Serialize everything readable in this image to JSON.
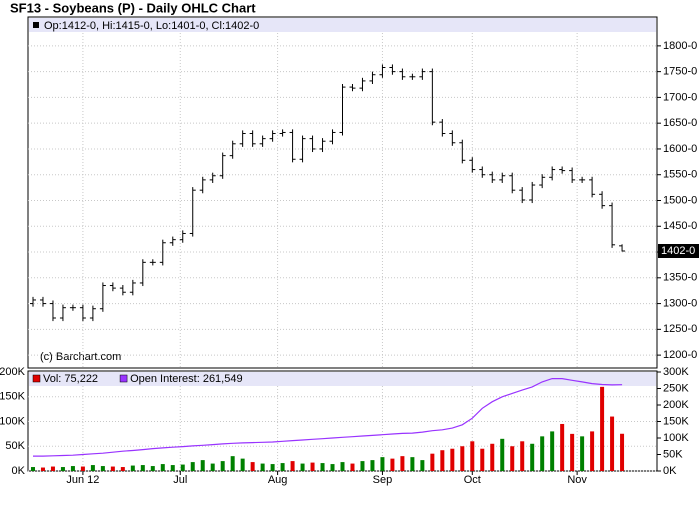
{
  "chart_data": [
    {
      "type": "ohlc",
      "title": "SF13 - Soybeans (P) - Daily OHLC Chart",
      "legend_text": "Op:1412-0, Hi:1415-0, Lo:1401-0, Cl:1402-0",
      "watermark": "(c) Barchart.com",
      "last_label": "1402-0",
      "last_value": 1402,
      "color": "#000000",
      "grid": true,
      "x": [
        0,
        2,
        4,
        6,
        8,
        10,
        12,
        14,
        16,
        18,
        20,
        22,
        24,
        26,
        28,
        30,
        32,
        34,
        36,
        38,
        40,
        42,
        44,
        46,
        48,
        50,
        52,
        54,
        56,
        58,
        60,
        62,
        64,
        66,
        68,
        70,
        72,
        74,
        76,
        78,
        80,
        82,
        84,
        86,
        88,
        90,
        92,
        94,
        96,
        98,
        100,
        102,
        104,
        106,
        108,
        110,
        112,
        114,
        116,
        118
      ],
      "open": [
        1300,
        1307,
        1300,
        1272,
        1292,
        1292,
        1272,
        1290,
        1335,
        1330,
        1322,
        1340,
        1380,
        1380,
        1418,
        1424,
        1436,
        1520,
        1540,
        1548,
        1587,
        1610,
        1630,
        1610,
        1620,
        1630,
        1632,
        1580,
        1620,
        1600,
        1615,
        1632,
        1720,
        1718,
        1732,
        1744,
        1758,
        1750,
        1740,
        1740,
        1750,
        1652,
        1630,
        1612,
        1578,
        1560,
        1550,
        1540,
        1548,
        1520,
        1501,
        1530,
        1545,
        1560,
        1558,
        1540,
        1540,
        1512,
        1490,
        1412
      ],
      "high": [
        1313,
        1313,
        1306,
        1298,
        1298,
        1298,
        1296,
        1341,
        1341,
        1336,
        1346,
        1386,
        1386,
        1424,
        1430,
        1442,
        1526,
        1546,
        1554,
        1593,
        1616,
        1636,
        1636,
        1626,
        1636,
        1638,
        1638,
        1626,
        1626,
        1621,
        1638,
        1726,
        1726,
        1738,
        1750,
        1764,
        1764,
        1756,
        1746,
        1756,
        1756,
        1658,
        1636,
        1618,
        1584,
        1566,
        1556,
        1554,
        1554,
        1526,
        1536,
        1551,
        1566,
        1566,
        1564,
        1546,
        1546,
        1518,
        1496,
        1415
      ],
      "low": [
        1294,
        1294,
        1266,
        1266,
        1286,
        1266,
        1266,
        1284,
        1324,
        1316,
        1316,
        1334,
        1374,
        1374,
        1412,
        1418,
        1430,
        1514,
        1534,
        1542,
        1581,
        1604,
        1604,
        1604,
        1614,
        1624,
        1574,
        1574,
        1594,
        1594,
        1609,
        1626,
        1712,
        1712,
        1726,
        1738,
        1744,
        1734,
        1734,
        1734,
        1646,
        1624,
        1606,
        1572,
        1554,
        1544,
        1534,
        1534,
        1514,
        1495,
        1495,
        1524,
        1539,
        1552,
        1534,
        1534,
        1506,
        1484,
        1408,
        1401
      ],
      "close": [
        1307,
        1300,
        1272,
        1292,
        1292,
        1272,
        1290,
        1335,
        1330,
        1322,
        1340,
        1380,
        1380,
        1418,
        1424,
        1436,
        1520,
        1540,
        1548,
        1587,
        1610,
        1630,
        1610,
        1620,
        1630,
        1632,
        1580,
        1620,
        1600,
        1615,
        1632,
        1720,
        1718,
        1732,
        1744,
        1758,
        1750,
        1740,
        1740,
        1750,
        1652,
        1630,
        1612,
        1578,
        1560,
        1550,
        1540,
        1548,
        1520,
        1501,
        1530,
        1545,
        1560,
        1558,
        1540,
        1540,
        1512,
        1490,
        1414,
        1402
      ],
      "xlim": [
        -1,
        125
      ],
      "xticks": [
        10,
        29.5,
        49,
        70,
        88,
        109
      ],
      "ylim": [
        1175,
        1856
      ],
      "yticks": [
        {
          "value": 1200,
          "label": "1200-0"
        },
        {
          "value": 1250,
          "label": "1250-0"
        },
        {
          "value": 1300,
          "label": "1300-0"
        },
        {
          "value": 1350,
          "label": "1350-0"
        },
        {
          "value": 1400,
          "label": "1400-0"
        },
        {
          "value": 1450,
          "label": "1450-0"
        },
        {
          "value": 1500,
          "label": "1500-0"
        },
        {
          "value": 1550,
          "label": "1550-0"
        },
        {
          "value": 1600,
          "label": "1600-0"
        },
        {
          "value": 1650,
          "label": "1650-0"
        },
        {
          "value": 1700,
          "label": "1700-0"
        },
        {
          "value": 1750,
          "label": "1750-0"
        },
        {
          "value": 1800,
          "label": "1800-0"
        }
      ]
    },
    {
      "type": "bar",
      "grid": true,
      "x": [
        0,
        2,
        4,
        6,
        8,
        10,
        12,
        14,
        16,
        18,
        20,
        22,
        24,
        26,
        28,
        30,
        32,
        34,
        36,
        38,
        40,
        42,
        44,
        46,
        48,
        50,
        52,
        54,
        56,
        58,
        60,
        62,
        64,
        66,
        68,
        70,
        72,
        74,
        76,
        78,
        80,
        82,
        84,
        86,
        88,
        90,
        92,
        94,
        96,
        98,
        100,
        102,
        104,
        106,
        108,
        110,
        112,
        114,
        116,
        118
      ],
      "xlim": [
        -1,
        125
      ],
      "xticks": [
        {
          "value": 10,
          "label": "Jun 12"
        },
        {
          "value": 29.5,
          "label": "Jul"
        },
        {
          "value": 49,
          "label": "Aug"
        },
        {
          "value": 70,
          "label": "Sep"
        },
        {
          "value": 88,
          "label": "Oct"
        },
        {
          "value": 109,
          "label": "Nov"
        }
      ],
      "ylim": [
        0,
        200000
      ],
      "yticks": [
        {
          "value": 0,
          "label": "0K"
        },
        {
          "value": 50000,
          "label": "50K"
        },
        {
          "value": 100000,
          "label": "100K"
        },
        {
          "value": 150000,
          "label": "150K"
        },
        {
          "value": 200000,
          "label": "200K"
        }
      ],
      "y2lim": [
        0,
        300000
      ],
      "y2ticks": [
        {
          "value": 0,
          "label": "0K"
        },
        {
          "value": 50000,
          "label": "50K"
        },
        {
          "value": 100000,
          "label": "100K"
        },
        {
          "value": 150000,
          "label": "150K"
        },
        {
          "value": 200000,
          "label": "200K"
        },
        {
          "value": 250000,
          "label": "250K"
        },
        {
          "value": 300000,
          "label": "300K"
        }
      ],
      "series": [
        {
          "name": "Vol: 75,222",
          "color": "#e00000",
          "up_color": "#008000",
          "values": [
            8000,
            7000,
            9000,
            8000,
            10000,
            9000,
            12000,
            10000,
            9000,
            8000,
            11000,
            12000,
            10000,
            14000,
            12000,
            13000,
            18000,
            22000,
            15000,
            20000,
            30000,
            25000,
            18000,
            15000,
            14000,
            16000,
            20000,
            15000,
            17000,
            16000,
            14000,
            18000,
            15000,
            20000,
            22000,
            28000,
            25000,
            30000,
            28000,
            22000,
            35000,
            42000,
            45000,
            50000,
            60000,
            45000,
            55000,
            65000,
            50000,
            60000,
            55000,
            70000,
            80000,
            95000,
            75000,
            70000,
            80000,
            170000,
            110000,
            75222
          ]
        },
        {
          "name": "Open Interest: 261,549",
          "color": "#9933ff",
          "axis": "y2",
          "values": [
            45000,
            45000,
            46000,
            47000,
            48000,
            50000,
            52000,
            54000,
            57000,
            60000,
            62000,
            65000,
            68000,
            70000,
            72000,
            74000,
            76000,
            78000,
            80000,
            82000,
            84000,
            85000,
            86000,
            87000,
            88000,
            90000,
            92000,
            94000,
            96000,
            98000,
            100000,
            102000,
            104000,
            106000,
            108000,
            110000,
            112000,
            114000,
            115000,
            118000,
            122000,
            125000,
            130000,
            140000,
            160000,
            190000,
            210000,
            225000,
            235000,
            245000,
            255000,
            270000,
            280000,
            280000,
            275000,
            270000,
            265000,
            262000,
            261000,
            261549
          ]
        }
      ]
    }
  ]
}
